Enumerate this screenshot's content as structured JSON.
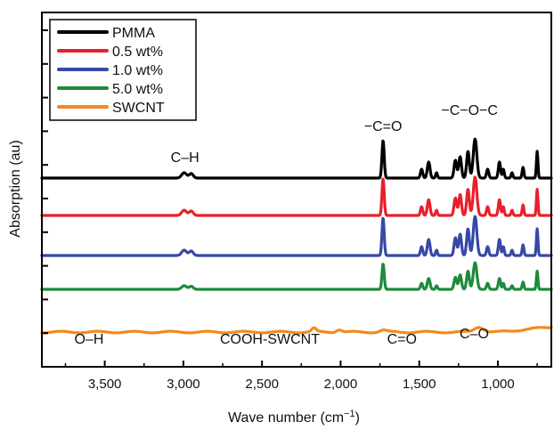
{
  "chart_data": {
    "type": "line",
    "xlabel_main": "Wave number (cm",
    "xlabel_sup": "−1",
    "xlabel_close": ")",
    "ylabel": "Absorption (au)",
    "xlim": [
      3900,
      660
    ],
    "x_reversed": true,
    "x_ticks": [
      {
        "value": 3500,
        "label": "3,500"
      },
      {
        "value": 3000,
        "label": "3,000"
      },
      {
        "value": 2500,
        "label": "2,500"
      },
      {
        "value": 2000,
        "label": "2,000"
      },
      {
        "value": 1500,
        "label": "1,500"
      },
      {
        "value": 1000,
        "label": "1,000"
      }
    ],
    "y_tick_count": 10,
    "legend_position": "top-left",
    "series": [
      {
        "name": "PMMA",
        "color": "#000000",
        "baseline": 200,
        "scale": 1.0,
        "noise": 0.0
      },
      {
        "name": "0.5 wt%",
        "color": "#e8202a",
        "baseline": 242,
        "scale": 0.98,
        "noise": 0.0
      },
      {
        "name": "1.0 wt%",
        "color": "#3748a6",
        "baseline": 287,
        "scale": 1.0,
        "noise": 0.0
      },
      {
        "name": "5.0 wt%",
        "color": "#1e8a3a",
        "baseline": 325,
        "scale": 0.68,
        "noise": 0.0
      },
      {
        "name": "SWCNT",
        "color": "#f28a1e",
        "baseline": 373,
        "scale": 0.0,
        "noise": 1.0
      }
    ],
    "annotations": [
      {
        "text": "C–H",
        "x": 2990,
        "y_offset": 0
      },
      {
        "text": "−C=O",
        "x": 1730,
        "y_offset": 0
      },
      {
        "text": "−C−O−C",
        "x": 1180,
        "y_offset": 0
      },
      {
        "text": "O–H",
        "x": 3600,
        "y_offset": 0
      },
      {
        "text": "COOH-SWCNT",
        "x": 2450,
        "y_offset": 0
      },
      {
        "text": "C=O",
        "x": 1610,
        "y_offset": 0
      },
      {
        "text": "C–O",
        "x": 1150,
        "y_offset": 0
      }
    ]
  }
}
